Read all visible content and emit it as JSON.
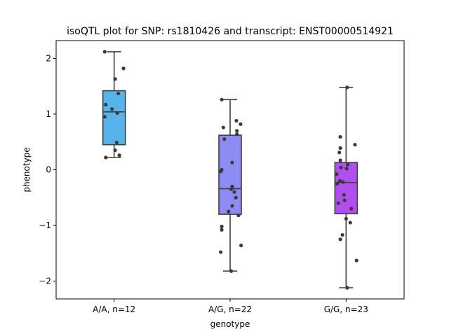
{
  "chart_data": {
    "type": "box",
    "title": "isoQTL plot for SNP: rs1810426 and transcript: ENST00000514921",
    "xlabel": "genotype",
    "ylabel": "phenotype",
    "ylim": [
      -2.32,
      2.32
    ],
    "yticks": [
      -2,
      -1,
      0,
      1,
      2
    ],
    "yticklabels": [
      "−2",
      "−1",
      "0",
      "1",
      "2"
    ],
    "grid": false,
    "categories": [
      "A/A, n=12",
      "A/G, n=22",
      "G/G, n=23"
    ],
    "boxes": [
      {
        "category": "A/A, n=12",
        "color": "#56b4ea",
        "q1": 0.45,
        "median": 1.04,
        "q3": 1.42,
        "whisker_low": 0.22,
        "whisker_high": 2.12,
        "points": [
          {
            "x": -0.36,
            "y": 2.12
          },
          {
            "x": 0.36,
            "y": 1.82
          },
          {
            "x": 0.04,
            "y": 1.63
          },
          {
            "x": 0.16,
            "y": 1.37
          },
          {
            "x": -0.32,
            "y": 1.17
          },
          {
            "x": -0.08,
            "y": 1.09
          },
          {
            "x": 0.12,
            "y": 1.02
          },
          {
            "x": -0.36,
            "y": 0.95
          },
          {
            "x": 0.1,
            "y": 0.49
          },
          {
            "x": 0.04,
            "y": 0.35
          },
          {
            "x": 0.2,
            "y": 0.26
          },
          {
            "x": -0.32,
            "y": 0.22
          }
        ]
      },
      {
        "category": "A/G, n=22",
        "color": "#8c8cf4",
        "q1": -0.8,
        "median": -0.34,
        "q3": 0.62,
        "whisker_low": -1.82,
        "whisker_high": 1.26,
        "points": [
          {
            "x": -0.32,
            "y": 1.26
          },
          {
            "x": 0.24,
            "y": 0.88
          },
          {
            "x": 0.4,
            "y": 0.82
          },
          {
            "x": -0.26,
            "y": 0.76
          },
          {
            "x": 0.26,
            "y": 0.7
          },
          {
            "x": 0.26,
            "y": 0.64
          },
          {
            "x": -0.22,
            "y": 0.55
          },
          {
            "x": 0.08,
            "y": 0.13
          },
          {
            "x": -0.32,
            "y": 0.0
          },
          {
            "x": -0.36,
            "y": -0.03
          },
          {
            "x": 0.08,
            "y": -0.3
          },
          {
            "x": 0.04,
            "y": -0.35
          },
          {
            "x": 0.16,
            "y": -0.4
          },
          {
            "x": 0.22,
            "y": -0.5
          },
          {
            "x": 0.08,
            "y": -0.65
          },
          {
            "x": -0.06,
            "y": -0.75
          },
          {
            "x": 0.32,
            "y": -0.82
          },
          {
            "x": -0.32,
            "y": -1.02
          },
          {
            "x": -0.32,
            "y": -1.08
          },
          {
            "x": 0.42,
            "y": -1.36
          },
          {
            "x": -0.36,
            "y": -1.48
          },
          {
            "x": 0.04,
            "y": -1.82
          }
        ]
      },
      {
        "category": "G/G, n=23",
        "color": "#b24ef0",
        "q1": -0.79,
        "median": -0.23,
        "q3": 0.13,
        "whisker_low": -2.12,
        "whisker_high": 1.48,
        "points": [
          {
            "x": 0.04,
            "y": 1.48
          },
          {
            "x": -0.22,
            "y": 0.59
          },
          {
            "x": 0.34,
            "y": 0.45
          },
          {
            "x": -0.22,
            "y": 0.39
          },
          {
            "x": -0.26,
            "y": 0.31
          },
          {
            "x": -0.22,
            "y": 0.17
          },
          {
            "x": 0.06,
            "y": 0.09
          },
          {
            "x": -0.2,
            "y": 0.04
          },
          {
            "x": 0.02,
            "y": 0.02
          },
          {
            "x": -0.36,
            "y": -0.08
          },
          {
            "x": -0.34,
            "y": -0.25
          },
          {
            "x": -0.24,
            "y": -0.2
          },
          {
            "x": -0.12,
            "y": -0.22
          },
          {
            "x": -0.08,
            "y": -0.45
          },
          {
            "x": -0.06,
            "y": -0.55
          },
          {
            "x": -0.3,
            "y": -0.6
          },
          {
            "x": 0.2,
            "y": -0.7
          },
          {
            "x": 0.0,
            "y": -0.88
          },
          {
            "x": 0.16,
            "y": -0.95
          },
          {
            "x": -0.14,
            "y": -1.17
          },
          {
            "x": -0.22,
            "y": -1.25
          },
          {
            "x": 0.4,
            "y": -1.63
          },
          {
            "x": 0.04,
            "y": -2.12
          }
        ]
      }
    ]
  }
}
